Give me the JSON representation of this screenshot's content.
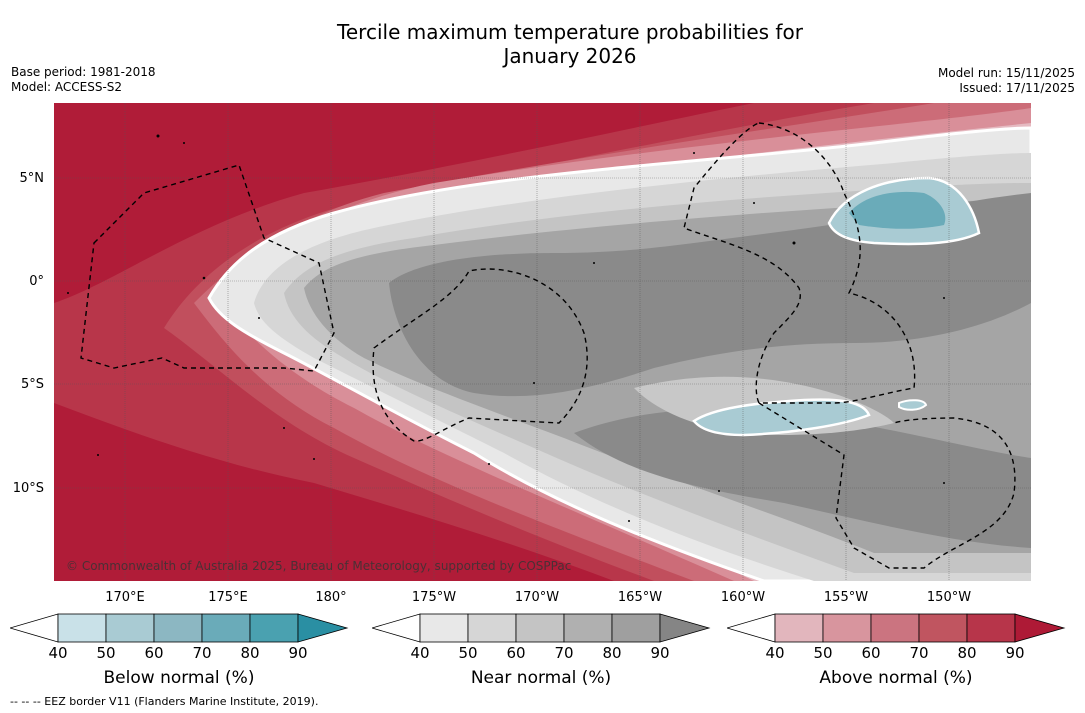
{
  "header": {
    "title_line1": "Tercile maximum temperature probabilities for",
    "title_line2": "January 2026",
    "base_period": "Base period: 1981-2018",
    "model": "Model: ACCESS-S2",
    "model_run": "Model run: 15/11/2025",
    "issued": "Issued: 17/11/2025"
  },
  "axes": {
    "lat_labels": [
      "5°N",
      "0°",
      "5°S",
      "10°S"
    ],
    "lon_labels": [
      "170°E",
      "175°E",
      "180°",
      "175°W",
      "170°W",
      "165°W",
      "160°W",
      "155°W",
      "150°W"
    ]
  },
  "map": {
    "copyright": "© Commonwealth of Australia 2025, Bureau of Meteorology, supported by COSPPac"
  },
  "legends": {
    "ticks": [
      "40",
      "50",
      "60",
      "70",
      "80",
      "90"
    ],
    "below_label": "Below normal (%)",
    "near_label": "Near normal (%)",
    "above_label": "Above normal (%)",
    "below_colors": [
      "#c9e1e8",
      "#a9cbd3",
      "#8cb7c2",
      "#6aabb9",
      "#4aa1b0",
      "#2a8fa3"
    ],
    "near_colors": [
      "#e8e8e8",
      "#d6d6d6",
      "#c4c4c4",
      "#b0b0b0",
      "#9f9f9f",
      "#858585"
    ],
    "above_colors": [
      "#e2b6bd",
      "#d8959e",
      "#cb7480",
      "#c05560",
      "#b7354a",
      "#ae1a36"
    ]
  },
  "footer": {
    "eez_note": "--  --  -- EEZ border V11 (Flanders Marine Institute, 2019)."
  }
}
